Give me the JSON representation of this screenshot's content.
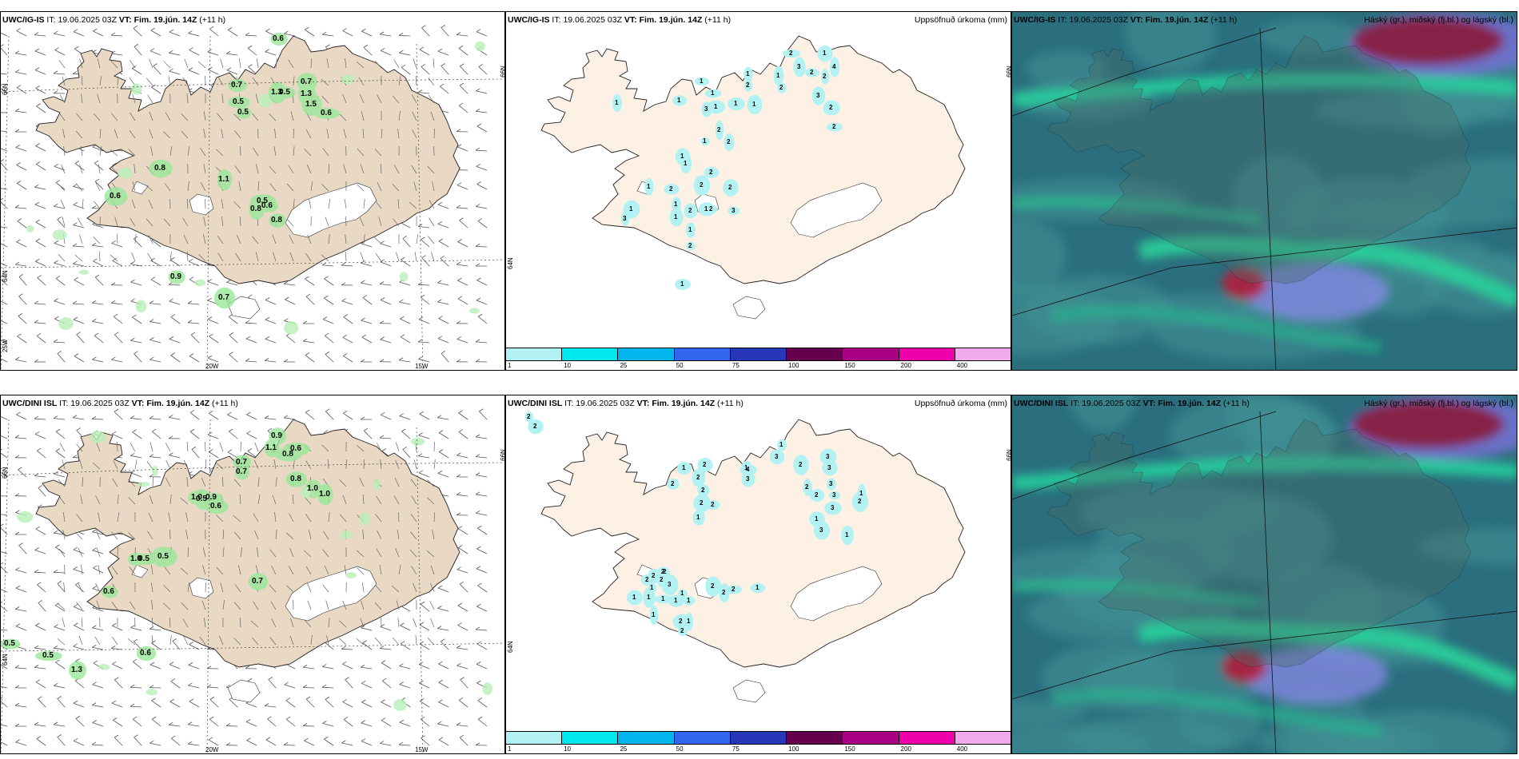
{
  "panels": [
    {
      "id": "p1",
      "model": "UWC/IG-IS",
      "it_label": "IT:",
      "it": "19.06.2025 03Z",
      "vt_label": "VT:",
      "vt": "Fim. 19.jún. 14Z",
      "lead": "(+11 h)",
      "title": "",
      "lon_labels": [
        "20W",
        "15W"
      ],
      "lat_labels": [
        "66N",
        "64N"
      ],
      "lat_left_extra": "25W",
      "lat_right": "66N",
      "values": [
        {
          "t": "0.6",
          "x": 340,
          "y": 28
        },
        {
          "t": "0.7",
          "x": 288,
          "y": 86
        },
        {
          "t": "0.5",
          "x": 290,
          "y": 107
        },
        {
          "t": "0.5",
          "x": 296,
          "y": 120
        },
        {
          "t": "1.3",
          "x": 338,
          "y": 95
        },
        {
          "t": "0.5",
          "x": 348,
          "y": 95
        },
        {
          "t": "0.7",
          "x": 375,
          "y": 82
        },
        {
          "t": "1.3",
          "x": 375,
          "y": 97
        },
        {
          "t": "1.5",
          "x": 381,
          "y": 110
        },
        {
          "t": "0.6",
          "x": 400,
          "y": 121
        },
        {
          "t": "0.8",
          "x": 192,
          "y": 190
        },
        {
          "t": "1.1",
          "x": 272,
          "y": 204
        },
        {
          "t": "0.6",
          "x": 136,
          "y": 225
        },
        {
          "t": "0.5",
          "x": 320,
          "y": 231
        },
        {
          "t": "0.6",
          "x": 326,
          "y": 237
        },
        {
          "t": "0.8",
          "x": 312,
          "y": 241
        },
        {
          "t": "0.8",
          "x": 338,
          "y": 255
        },
        {
          "t": "0.9",
          "x": 212,
          "y": 326
        },
        {
          "t": "0.7",
          "x": 272,
          "y": 352
        }
      ]
    },
    {
      "id": "p2",
      "model": "UWC/IG-IS",
      "it_label": "IT:",
      "it": "19.06.2025 03Z",
      "vt_label": "VT:",
      "vt": "Fim. 19.jún. 14Z",
      "lead": "(+11 h)",
      "title": "Uppsöfnuð úrkoma (mm)",
      "lon_labels": [],
      "lat_labels": [
        "64N"
      ],
      "lat_right": "66N",
      "values": [
        {
          "t": "2",
          "x": 354,
          "y": 47
        },
        {
          "t": "3",
          "x": 364,
          "y": 64
        },
        {
          "t": "2",
          "x": 380,
          "y": 71
        },
        {
          "t": "2",
          "x": 396,
          "y": 76
        },
        {
          "t": "1",
          "x": 396,
          "y": 47
        },
        {
          "t": "4",
          "x": 408,
          "y": 64
        },
        {
          "t": "1",
          "x": 338,
          "y": 75
        },
        {
          "t": "2",
          "x": 342,
          "y": 90
        },
        {
          "t": "1",
          "x": 300,
          "y": 73
        },
        {
          "t": "2",
          "x": 300,
          "y": 87
        },
        {
          "t": "1",
          "x": 242,
          "y": 82
        },
        {
          "t": "1",
          "x": 256,
          "y": 97
        },
        {
          "t": "1",
          "x": 214,
          "y": 106
        },
        {
          "t": "1",
          "x": 285,
          "y": 110
        },
        {
          "t": "1",
          "x": 308,
          "y": 111
        },
        {
          "t": "3",
          "x": 388,
          "y": 100
        },
        {
          "t": "3",
          "x": 248,
          "y": 117
        },
        {
          "t": "1",
          "x": 260,
          "y": 114
        },
        {
          "t": "2",
          "x": 404,
          "y": 115
        },
        {
          "t": "2",
          "x": 408,
          "y": 139
        },
        {
          "t": "2",
          "x": 264,
          "y": 143
        },
        {
          "t": "2",
          "x": 276,
          "y": 158
        },
        {
          "t": "1",
          "x": 246,
          "y": 157
        },
        {
          "t": "1",
          "x": 136,
          "y": 109
        },
        {
          "t": "1",
          "x": 218,
          "y": 176
        },
        {
          "t": "1",
          "x": 222,
          "y": 185
        },
        {
          "t": "2",
          "x": 254,
          "y": 196
        },
        {
          "t": "2",
          "x": 278,
          "y": 215
        },
        {
          "t": "2",
          "x": 242,
          "y": 212
        },
        {
          "t": "1",
          "x": 176,
          "y": 214
        },
        {
          "t": "2",
          "x": 204,
          "y": 217
        },
        {
          "t": "1",
          "x": 210,
          "y": 236
        },
        {
          "t": "2",
          "x": 228,
          "y": 244
        },
        {
          "t": "1",
          "x": 248,
          "y": 242
        },
        {
          "t": "2",
          "x": 254,
          "y": 242
        },
        {
          "t": "3",
          "x": 282,
          "y": 244
        },
        {
          "t": "1",
          "x": 210,
          "y": 252
        },
        {
          "t": "1",
          "x": 154,
          "y": 242
        },
        {
          "t": "3",
          "x": 146,
          "y": 254
        },
        {
          "t": "1",
          "x": 228,
          "y": 268
        },
        {
          "t": "2",
          "x": 228,
          "y": 288
        },
        {
          "t": "1",
          "x": 218,
          "y": 336
        }
      ],
      "colorbar": {
        "ticks": [
          "1",
          "10",
          "25",
          "50",
          "75",
          "100",
          "150",
          "200",
          "400"
        ],
        "colors": [
          "#b2f2f2",
          "#00e8ee",
          "#00b6ec",
          "#3366ee",
          "#2638b8",
          "#66004c",
          "#aa0083",
          "#ee00aa",
          "#f2aaee"
        ]
      }
    },
    {
      "id": "p3",
      "model": "UWC/IG-IS",
      "it_label": "IT:",
      "it": "19.06.2025 03Z",
      "vt_label": "VT:",
      "vt": "Fim. 19.jún. 14Z",
      "lead": "(+11 h)",
      "title": "Háský (gr.), miðský (fj.bl.) og lágský (bl.)",
      "dark": true
    },
    {
      "id": "p4",
      "model": "UWC/DINI ISL",
      "it_label": "IT:",
      "it": "19.06.2025 03Z",
      "vt_label": "VT:",
      "vt": "Fim. 19.jún. 14Z",
      "lead": "(+11 h)",
      "title": "",
      "lon_labels": [
        "20W",
        "15W"
      ],
      "lat_labels": [
        "66N",
        "64N"
      ],
      "lat_right": "66N",
      "values": [
        {
          "t": "0.9",
          "x": 338,
          "y": 45
        },
        {
          "t": "1.1",
          "x": 331,
          "y": 60
        },
        {
          "t": "0.6",
          "x": 362,
          "y": 61
        },
        {
          "t": "0.8",
          "x": 352,
          "y": 68
        },
        {
          "t": "0.7",
          "x": 294,
          "y": 78
        },
        {
          "t": "0.7",
          "x": 294,
          "y": 90
        },
        {
          "t": "0.8",
          "x": 362,
          "y": 99
        },
        {
          "t": "1.0",
          "x": 383,
          "y": 111
        },
        {
          "t": "1.0",
          "x": 398,
          "y": 118
        },
        {
          "t": "1.0",
          "x": 238,
          "y": 122
        },
        {
          "t": "0.5",
          "x": 244,
          "y": 124
        },
        {
          "t": "0.9",
          "x": 256,
          "y": 122
        },
        {
          "t": "0.6",
          "x": 262,
          "y": 133
        },
        {
          "t": "1.0",
          "x": 162,
          "y": 199
        },
        {
          "t": "0.5",
          "x": 172,
          "y": 199
        },
        {
          "t": "0.5",
          "x": 196,
          "y": 196
        },
        {
          "t": "0.6",
          "x": 128,
          "y": 240
        },
        {
          "t": "0.7",
          "x": 314,
          "y": 227
        },
        {
          "t": "0.5",
          "x": 4,
          "y": 305
        },
        {
          "t": "0.5",
          "x": 52,
          "y": 320
        },
        {
          "t": "1.3",
          "x": 88,
          "y": 338
        },
        {
          "t": "0.6",
          "x": 174,
          "y": 317
        }
      ]
    },
    {
      "id": "p5",
      "model": "UWC/DINI ISL",
      "it_label": "IT:",
      "it": "19.06.2025 03Z",
      "vt_label": "VT:",
      "vt": "Fim. 19.jún. 14Z",
      "lead": "(+11 h)",
      "title": "Uppsöfnuð úrkoma (mm)",
      "lon_labels": [],
      "lat_labels": [
        "64N"
      ],
      "lat_right": "66N",
      "values": [
        {
          "t": "2",
          "x": 26,
          "y": 22
        },
        {
          "t": "2",
          "x": 34,
          "y": 34
        },
        {
          "t": "1",
          "x": 342,
          "y": 57
        },
        {
          "t": "3",
          "x": 336,
          "y": 72
        },
        {
          "t": "2",
          "x": 366,
          "y": 82
        },
        {
          "t": "3",
          "x": 400,
          "y": 72
        },
        {
          "t": "3",
          "x": 402,
          "y": 86
        },
        {
          "t": "1",
          "x": 298,
          "y": 86
        },
        {
          "t": "4",
          "x": 300,
          "y": 88
        },
        {
          "t": "3",
          "x": 300,
          "y": 100
        },
        {
          "t": "2",
          "x": 246,
          "y": 82
        },
        {
          "t": "1",
          "x": 220,
          "y": 86
        },
        {
          "t": "2",
          "x": 238,
          "y": 98
        },
        {
          "t": "2",
          "x": 206,
          "y": 106
        },
        {
          "t": "2",
          "x": 244,
          "y": 114
        },
        {
          "t": "2",
          "x": 242,
          "y": 130
        },
        {
          "t": "2",
          "x": 256,
          "y": 132
        },
        {
          "t": "1",
          "x": 238,
          "y": 148
        },
        {
          "t": "2",
          "x": 374,
          "y": 110
        },
        {
          "t": "2",
          "x": 386,
          "y": 120
        },
        {
          "t": "3",
          "x": 404,
          "y": 106
        },
        {
          "t": "3",
          "x": 408,
          "y": 120
        },
        {
          "t": "3",
          "x": 406,
          "y": 136
        },
        {
          "t": "2",
          "x": 440,
          "y": 128
        },
        {
          "t": "1",
          "x": 442,
          "y": 118
        },
        {
          "t": "1",
          "x": 386,
          "y": 150
        },
        {
          "t": "3",
          "x": 392,
          "y": 164
        },
        {
          "t": "1",
          "x": 424,
          "y": 170
        },
        {
          "t": "2",
          "x": 194,
          "y": 216
        },
        {
          "t": "2",
          "x": 174,
          "y": 226
        },
        {
          "t": "1",
          "x": 180,
          "y": 236
        },
        {
          "t": "2",
          "x": 182,
          "y": 221
        },
        {
          "t": "2",
          "x": 192,
          "y": 226
        },
        {
          "t": "2",
          "x": 196,
          "y": 216
        },
        {
          "t": "3",
          "x": 202,
          "y": 232
        },
        {
          "t": "1",
          "x": 218,
          "y": 243
        },
        {
          "t": "2",
          "x": 256,
          "y": 234
        },
        {
          "t": "2",
          "x": 270,
          "y": 242
        },
        {
          "t": "2",
          "x": 282,
          "y": 238
        },
        {
          "t": "1",
          "x": 312,
          "y": 236
        },
        {
          "t": "1",
          "x": 158,
          "y": 248
        },
        {
          "t": "1",
          "x": 176,
          "y": 248
        },
        {
          "t": "1",
          "x": 194,
          "y": 250
        },
        {
          "t": "1",
          "x": 210,
          "y": 252
        },
        {
          "t": "1",
          "x": 226,
          "y": 252
        },
        {
          "t": "1",
          "x": 182,
          "y": 270
        },
        {
          "t": "2",
          "x": 216,
          "y": 278
        },
        {
          "t": "1",
          "x": 226,
          "y": 278
        },
        {
          "t": "2",
          "x": 218,
          "y": 290
        }
      ],
      "colorbar": {
        "ticks": [
          "1",
          "10",
          "25",
          "50",
          "75",
          "100",
          "150",
          "200",
          "400"
        ],
        "colors": [
          "#b2f2f2",
          "#00e8ee",
          "#00b6ec",
          "#3366ee",
          "#2638b8",
          "#66004c",
          "#aa0083",
          "#ee00aa",
          "#f2aaee"
        ]
      }
    },
    {
      "id": "p6",
      "model": "UWC/DINI ISL",
      "it_label": "IT:",
      "it": "19.06.2025 03Z",
      "vt_label": "VT:",
      "vt": "Fim. 19.jún. 14Z",
      "lead": "(+11 h)",
      "title": "Háský (gr.), miðský (fj.bl.) og lágský (bl.)",
      "dark": true
    }
  ]
}
